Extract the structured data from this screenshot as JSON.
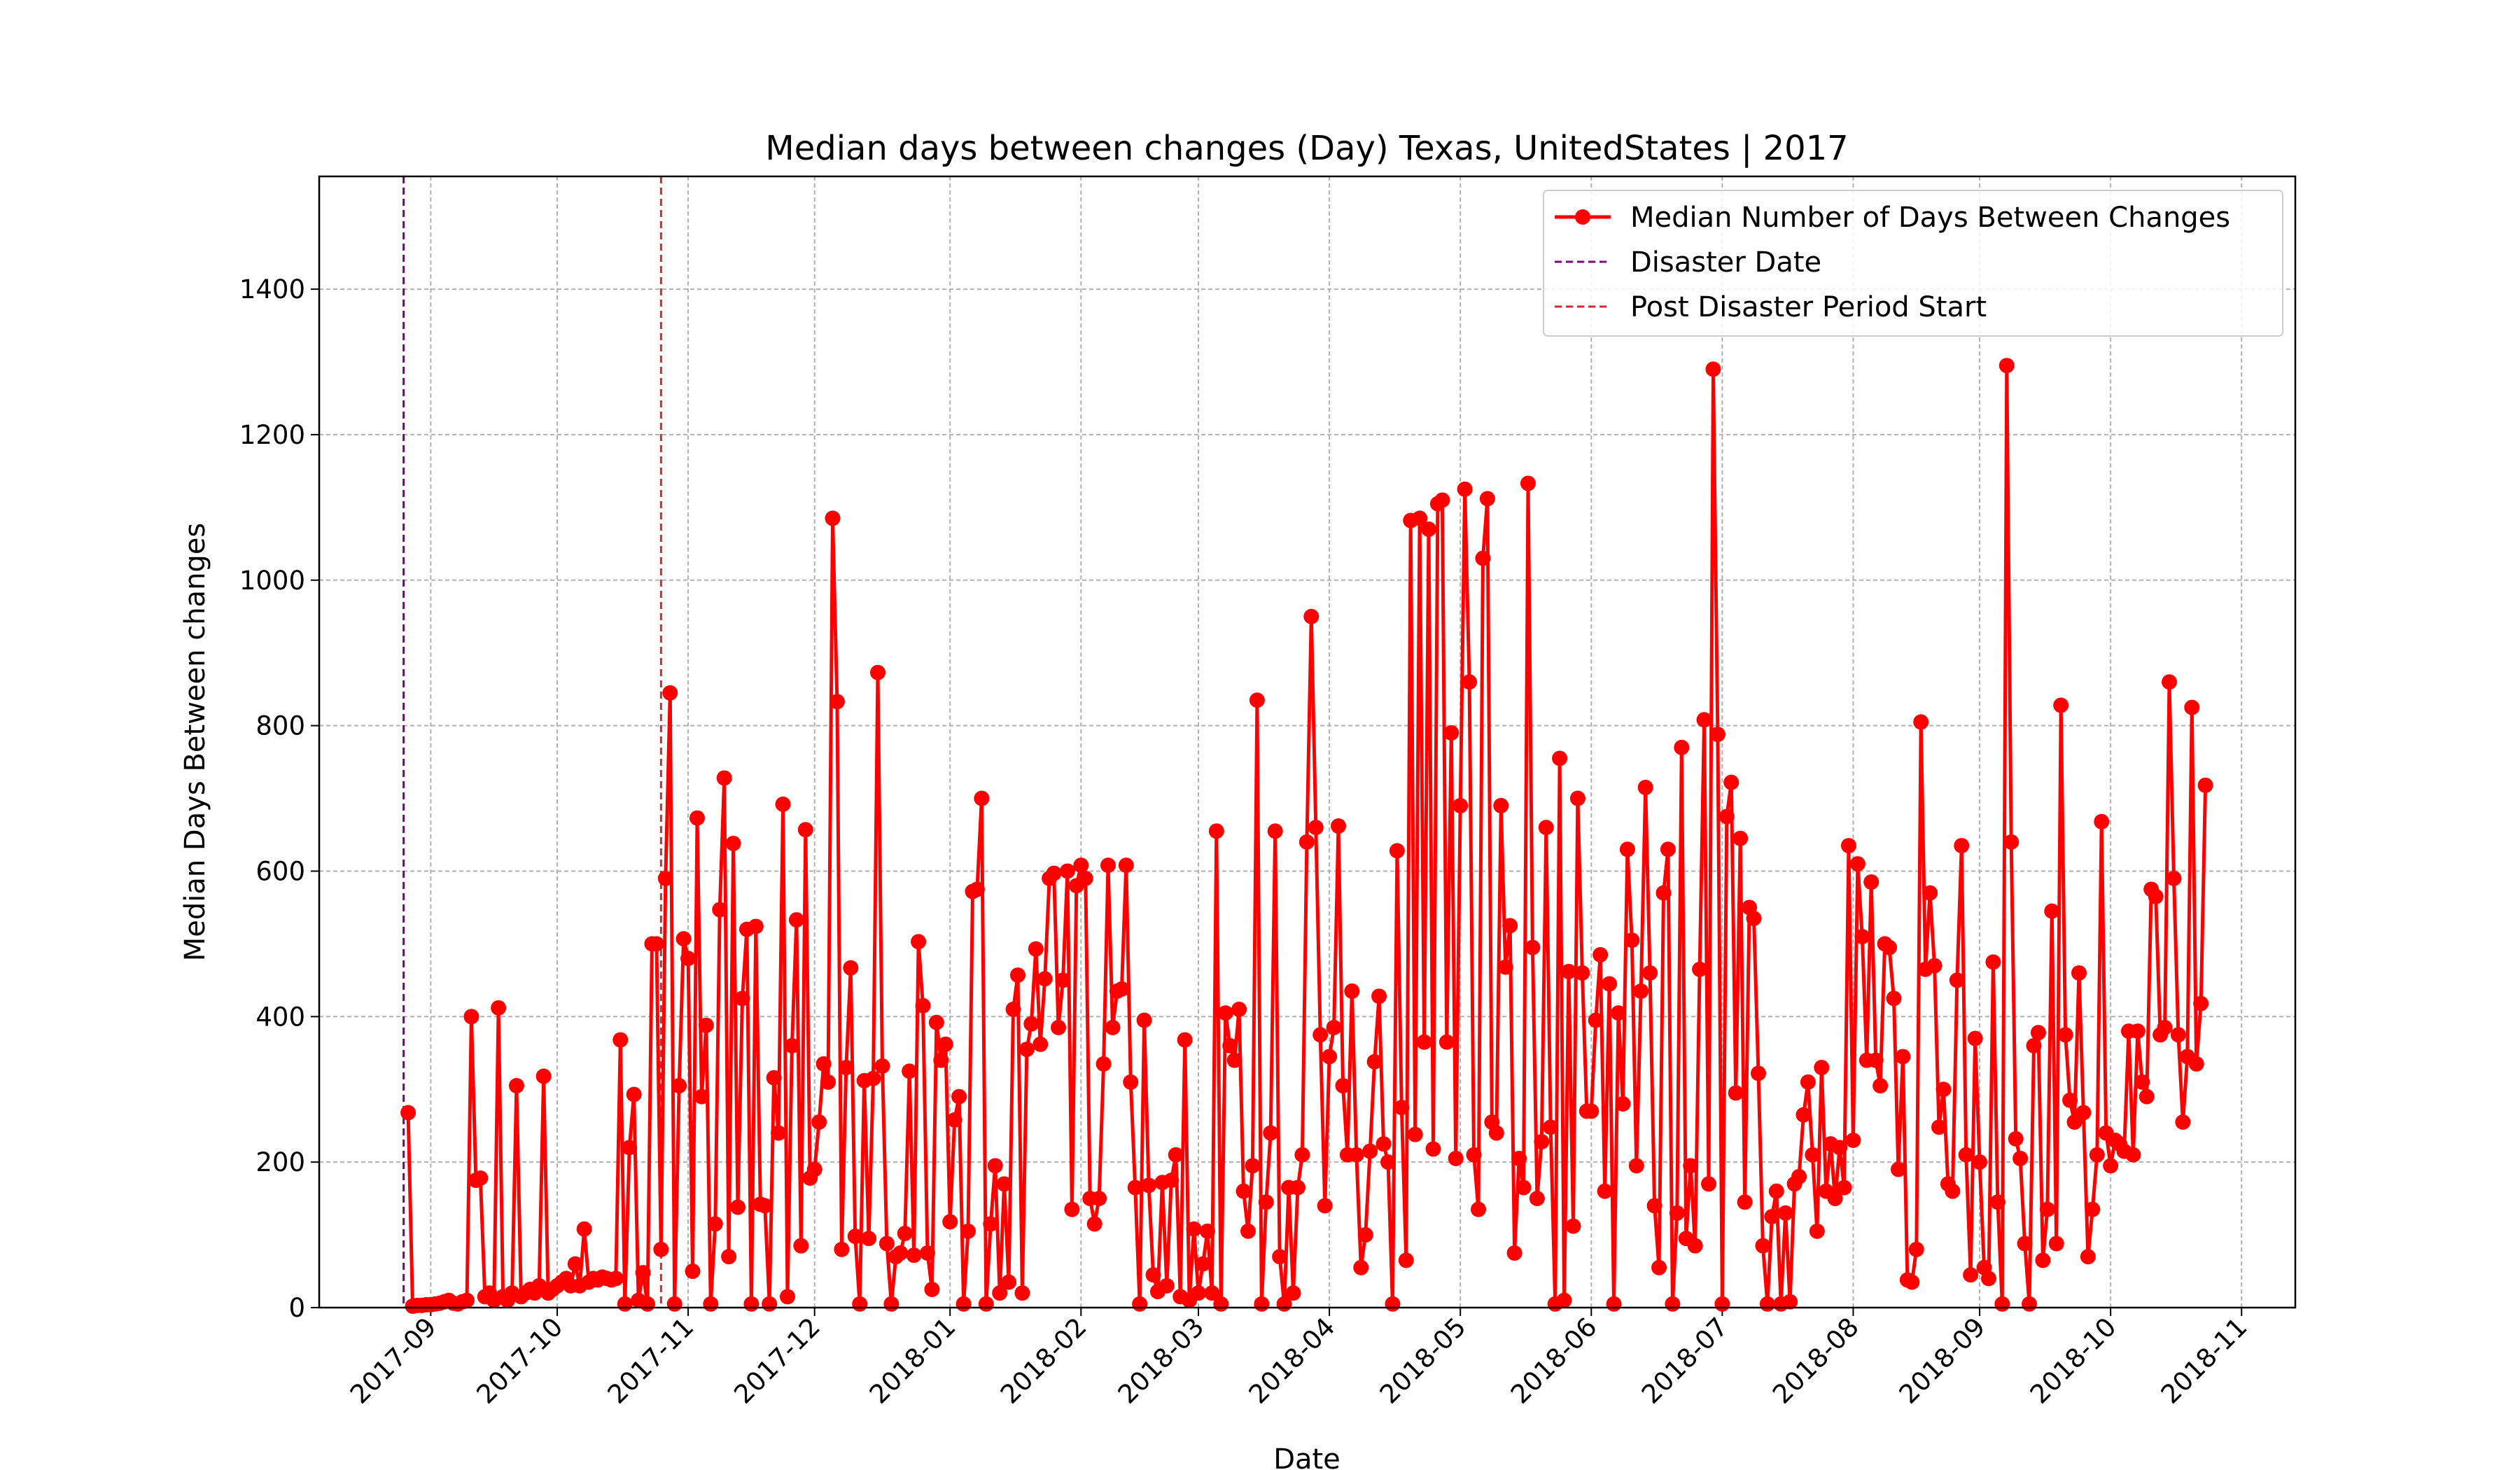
{
  "chart_data": {
    "type": "line",
    "title": "Median days between changes (Day) Texas, UnitedStates | 2017",
    "xlabel": "Date",
    "ylabel": "Median Days Between changes",
    "ylim": [
      0,
      1555
    ],
    "yticks": [
      0,
      200,
      400,
      600,
      800,
      1000,
      1200,
      1400
    ],
    "grid": true,
    "legend": "upper right",
    "categories": [
      null,
      null,
      null,
      null,
      null,
      null,
      "2017-09",
      null,
      null,
      null,
      null,
      null,
      null,
      null,
      null,
      null,
      null,
      null,
      null,
      null,
      null,
      null,
      null,
      null,
      null,
      null,
      null,
      null,
      null,
      null,
      null,
      null,
      null,
      null,
      "2017-10",
      null,
      null,
      null,
      null,
      null,
      null,
      null,
      null,
      null,
      null,
      null,
      null,
      null,
      null,
      null,
      null,
      null,
      null,
      null,
      null,
      null,
      null,
      null,
      null,
      null,
      null,
      null,
      null,
      "2017-11",
      null,
      null,
      null,
      null,
      null,
      null,
      null,
      null,
      null,
      null,
      null,
      null,
      null,
      null,
      null,
      null,
      null,
      null,
      null,
      null,
      null,
      null,
      null,
      null,
      null,
      null,
      null,
      "2017-12",
      null,
      null,
      null,
      null,
      null,
      null,
      null,
      null,
      null,
      null,
      null,
      null,
      null,
      null,
      null,
      null,
      null,
      null,
      null,
      null,
      null,
      null,
      null,
      null,
      null,
      null,
      null,
      null,
      null,
      "2018-01",
      null,
      null,
      null,
      null,
      null,
      null,
      null,
      null,
      null,
      null,
      null,
      null,
      null,
      null,
      null,
      null,
      null,
      null,
      null,
      null,
      null,
      null,
      null,
      null,
      null,
      null,
      null,
      null,
      "2018-02",
      null,
      null,
      null,
      null,
      null,
      null,
      null,
      null,
      null,
      null,
      null,
      null,
      null,
      null,
      null,
      null,
      null,
      null,
      null,
      null,
      null,
      null,
      null,
      null,
      null,
      "2018-03",
      null,
      null,
      null,
      null,
      null,
      null,
      null,
      null,
      null,
      null,
      null,
      null,
      null,
      null,
      null,
      null,
      null,
      null,
      null,
      null,
      null,
      null,
      null,
      null,
      null,
      null,
      null,
      null,
      "2018-04",
      null,
      null,
      null,
      null,
      null,
      null,
      null,
      null,
      null,
      null,
      null,
      null,
      null,
      null,
      null,
      null,
      null,
      null,
      null,
      null,
      null,
      null,
      null,
      null,
      null,
      null,
      null,
      null,
      "2018-05",
      null,
      null,
      null,
      null,
      null,
      null,
      null,
      null,
      null,
      null,
      null,
      null,
      null,
      null,
      null,
      null,
      null,
      null,
      null,
      null,
      null,
      null,
      null,
      null,
      null,
      null,
      null,
      null,
      "2018-06",
      null,
      null,
      null,
      null,
      null,
      null,
      null,
      null,
      null,
      null,
      null,
      null,
      null,
      null,
      null,
      null,
      null,
      null,
      null,
      null,
      null,
      null,
      null,
      null,
      null,
      null,
      null,
      null,
      "2018-07",
      null,
      null,
      null,
      null,
      null,
      null,
      null,
      null,
      null,
      null,
      null,
      null,
      null,
      null,
      null,
      null,
      null,
      null,
      null,
      null,
      null,
      null,
      null,
      null,
      null,
      null,
      null,
      null,
      "2018-08",
      null,
      null,
      null,
      null,
      null,
      null,
      null,
      null,
      null,
      null,
      null,
      null,
      null,
      null,
      null,
      null,
      null,
      null,
      null,
      null,
      null,
      null,
      null,
      null,
      null,
      null,
      null,
      "2018-09",
      null,
      null,
      null,
      null,
      null,
      null,
      null,
      null,
      null,
      null,
      null,
      null,
      null,
      null,
      null,
      null,
      null,
      null,
      null,
      null,
      null,
      null,
      null,
      null,
      null,
      null,
      null,
      null,
      "2018-10",
      null,
      null,
      null,
      null,
      null,
      null,
      null,
      null,
      null,
      null,
      null,
      null,
      null,
      null,
      null,
      null,
      null,
      null,
      null,
      null,
      null,
      null,
      null,
      null,
      null,
      null,
      null,
      null,
      "2018-11"
    ],
    "series": [
      {
        "name": "Median Number of Days Between Changes",
        "color": "#ff0000",
        "values": [
          null,
          268,
          2,
          3,
          3,
          4,
          4,
          5,
          6,
          8,
          10,
          6,
          5,
          8,
          10,
          400,
          175,
          178,
          15,
          20,
          10,
          412,
          15,
          10,
          20,
          305,
          15,
          20,
          25,
          20,
          30,
          318,
          20,
          25,
          30,
          35,
          40,
          30,
          60,
          30,
          108,
          35,
          40,
          38,
          42,
          40,
          38,
          40,
          368,
          5,
          220,
          293,
          10,
          48,
          5,
          500,
          500,
          80,
          590,
          845,
          5,
          305,
          507,
          480,
          50,
          673,
          290,
          388,
          5,
          115,
          547,
          728,
          70,
          638,
          138,
          425,
          520,
          5,
          524,
          142,
          140,
          5,
          316,
          240,
          692,
          15,
          360,
          533,
          85,
          657,
          178,
          190,
          255,
          335,
          310,
          1085,
          833,
          80,
          330,
          467,
          98,
          5,
          312,
          95,
          315,
          873,
          332,
          88,
          5,
          70,
          75,
          102,
          325,
          72,
          503,
          415,
          75,
          25,
          392,
          340,
          362,
          118,
          258,
          290,
          5,
          105,
          572,
          575,
          700,
          5,
          115,
          195,
          20,
          170,
          35,
          410,
          457,
          20,
          355,
          390,
          493,
          362,
          452,
          590,
          597,
          385,
          450,
          600,
          135,
          580,
          608,
          590,
          150,
          115,
          150,
          335,
          608,
          385,
          435,
          438,
          608,
          310,
          165,
          5,
          395,
          168,
          45,
          22,
          172,
          30,
          175,
          210,
          15,
          368,
          10,
          108,
          20,
          60,
          105,
          20,
          655,
          5,
          405,
          360,
          340,
          410,
          160,
          105,
          195,
          835,
          5,
          145,
          240,
          655,
          70,
          5,
          165,
          20,
          165,
          210,
          640,
          950,
          660,
          375,
          140,
          345,
          385,
          662,
          305,
          210,
          435,
          210,
          55,
          100,
          215,
          338,
          428,
          225,
          200,
          5,
          628,
          275,
          65,
          1082,
          238,
          1085,
          365,
          1070,
          218,
          1105,
          1110,
          365,
          790,
          205,
          690,
          1125,
          860,
          210,
          135,
          1030,
          1112,
          255,
          240,
          690,
          468,
          525,
          75,
          205,
          165,
          1133,
          495,
          150,
          228,
          660,
          248,
          5,
          755,
          10,
          462,
          112,
          700,
          460,
          270,
          270,
          395,
          485,
          160,
          445,
          5,
          405,
          280,
          630,
          505,
          195,
          435,
          715,
          460,
          140,
          55,
          570,
          630,
          5,
          130,
          770,
          95,
          195,
          85,
          465,
          808,
          170,
          1290,
          788,
          5,
          675,
          722,
          295,
          645,
          145,
          550,
          535,
          322,
          85,
          5,
          125,
          160,
          5,
          130,
          8,
          170,
          180,
          265,
          310,
          210,
          105,
          330,
          160,
          225,
          150,
          220,
          165,
          635,
          230,
          610,
          510,
          340,
          585,
          340,
          305,
          500,
          495,
          425,
          190,
          345,
          38,
          35,
          80,
          805,
          465,
          570,
          470,
          248,
          300,
          170,
          160,
          450,
          635,
          210,
          45,
          370,
          200,
          55,
          40,
          475,
          145,
          5,
          1295,
          640,
          232,
          205,
          88,
          5,
          360,
          378,
          65,
          135,
          545,
          88,
          828,
          375,
          285,
          255,
          460,
          268,
          70,
          135,
          210,
          668,
          240,
          195,
          230,
          225,
          215,
          380,
          210,
          380,
          310,
          290,
          575,
          565,
          375,
          385,
          860,
          590,
          375,
          255,
          345,
          825,
          335,
          418,
          718,
          null,
          null,
          null,
          null,
          null,
          null,
          null,
          null
        ]
      }
    ],
    "vlines": [
      {
        "name": "Disaster Date",
        "color": "#800080",
        "at": 0
      },
      {
        "name": "Post Disaster Period Start",
        "color": "#d62728",
        "at": 57
      }
    ]
  }
}
